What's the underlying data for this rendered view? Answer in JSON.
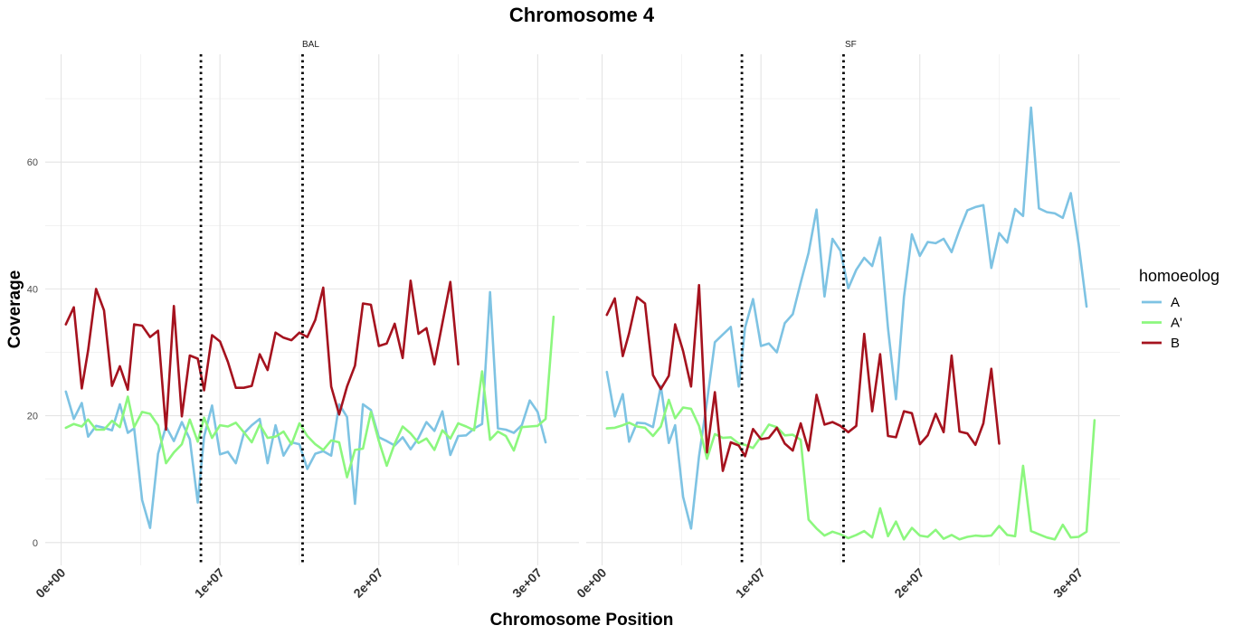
{
  "chart_data": {
    "type": "line",
    "title": "Chromosome 4",
    "xlabel": "Chromosome Position",
    "ylabel": "Coverage",
    "xlim": [
      -1000000,
      32600000
    ],
    "ylim": [
      -3600,
      77000
    ],
    "x_ticks": [
      0,
      10000000,
      20000000,
      30000000
    ],
    "x_tick_labels": [
      "0e+00",
      "1e+07",
      "2e+07",
      "3e+07"
    ],
    "y_ticks": [
      0,
      20,
      40,
      60
    ],
    "y_tick_labels": [
      "0",
      "20",
      "40",
      "60"
    ],
    "y_scale": 1000,
    "grid": true,
    "legend": {
      "title": "homoeolog",
      "position": "right"
    },
    "colors": {
      "A": "#7ec3e3",
      "A'": "#8cf77e",
      "B": "#a5121e"
    },
    "panels": [
      {
        "label": "BAL",
        "vlines": [
          8800000,
          15200000
        ],
        "series": [
          {
            "name": "A",
            "color": "#7ec3e3",
            "x": [
              300000,
              800000,
              1300000,
              1700000,
              2200000,
              2700000,
              3200000,
              3700000,
              4200000,
              4600000,
              5100000,
              5600000,
              6100000,
              6600000,
              7100000,
              7600000,
              8100000,
              8600000,
              9000000,
              9500000,
              10000000,
              10500000,
              11000000,
              11500000,
              12000000,
              12500000,
              13000000,
              13500000,
              14000000,
              14500000,
              15000000,
              15500000,
              16000000,
              16500000,
              17000000,
              17500000,
              18000000,
              18500000,
              19000000,
              19500000,
              20000000,
              20500000,
              21000000,
              21500000,
              22000000,
              22500000,
              23000000,
              23500000,
              24000000,
              24500000,
              25000000,
              25500000,
              26000000,
              26500000,
              27000000,
              27500000,
              28000000,
              28500000,
              29000000,
              29500000,
              30000000,
              30500000
            ],
            "y": [
              23.8,
              19.5,
              22.0,
              16.7,
              18.4,
              18.1,
              17.7,
              21.8,
              17.3,
              18.0,
              6.7,
              2.3,
              14.0,
              18.3,
              16.0,
              19.0,
              16.3,
              6.3,
              16.7,
              21.6,
              13.9,
              14.3,
              12.5,
              17.2,
              18.5,
              19.5,
              12.5,
              18.5,
              13.7,
              15.8,
              15.5,
              11.6,
              14.0,
              14.4,
              13.7,
              21.8,
              19.8,
              6.1,
              21.8,
              20.9,
              16.6,
              16.0,
              15.3,
              16.6,
              14.7,
              16.5,
              19.0,
              17.6,
              20.7,
              13.8,
              16.8,
              16.9,
              18.0,
              18.7,
              39.5,
              18.0,
              17.8,
              17.3,
              18.5,
              22.4,
              20.6,
              15.8
            ]
          },
          {
            "name": "A'",
            "color": "#8cf77e",
            "x": [
              300000,
              800000,
              1300000,
              1700000,
              2200000,
              2700000,
              3200000,
              3700000,
              4200000,
              4600000,
              5100000,
              5600000,
              6100000,
              6600000,
              7100000,
              7600000,
              8100000,
              8600000,
              9000000,
              9500000,
              10000000,
              10500000,
              11000000,
              11500000,
              12000000,
              12500000,
              13000000,
              13500000,
              14000000,
              14500000,
              15000000,
              15500000,
              16000000,
              16500000,
              17000000,
              17500000,
              18000000,
              18500000,
              19000000,
              19500000,
              20000000,
              20500000,
              21000000,
              21500000,
              22000000,
              22500000,
              23000000,
              23500000,
              24000000,
              24500000,
              25000000,
              25500000,
              26000000,
              26500000,
              27000000,
              27500000,
              28000000,
              28500000,
              29000000,
              29500000,
              30000000,
              30500000,
              31000000
            ],
            "y": [
              18.1,
              18.7,
              18.3,
              19.4,
              17.8,
              17.8,
              19.2,
              18.2,
              23.0,
              18.2,
              20.6,
              20.3,
              18.5,
              12.5,
              14.2,
              15.5,
              19.4,
              15.9,
              19.7,
              16.5,
              18.5,
              18.3,
              18.9,
              17.4,
              15.8,
              18.6,
              16.5,
              16.7,
              17.5,
              15.5,
              18.8,
              16.8,
              15.5,
              14.6,
              16.1,
              15.8,
              10.3,
              14.6,
              14.8,
              20.6,
              16.0,
              12.1,
              15.6,
              18.3,
              17.2,
              15.7,
              16.4,
              14.6,
              17.7,
              16.4,
              18.8,
              18.3,
              17.7,
              27.0,
              16.2,
              17.5,
              16.8,
              14.5,
              18.2,
              18.3,
              18.4,
              19.5,
              35.6
            ]
          },
          {
            "name": "B",
            "color": "#a5121e",
            "x": [
              300000,
              800000,
              1300000,
              1700000,
              2200000,
              2700000,
              3200000,
              3700000,
              4200000,
              4600000,
              5100000,
              5600000,
              6100000,
              6600000,
              7100000,
              7600000,
              8100000,
              8600000,
              9000000,
              9500000,
              10000000,
              10500000,
              11000000,
              11500000,
              12000000,
              12500000,
              13000000,
              13500000,
              14000000,
              14500000,
              15000000,
              15500000,
              16000000,
              16500000,
              17000000,
              17500000,
              18000000,
              18500000,
              19000000,
              19500000,
              20000000,
              20500000,
              21000000,
              21500000,
              22000000,
              22500000,
              23000000,
              23500000,
              24000000,
              24500000,
              25000000
            ],
            "y": [
              34.4,
              37.1,
              24.3,
              30.3,
              40.0,
              36.6,
              24.7,
              27.8,
              24.1,
              34.4,
              34.2,
              32.4,
              33.4,
              17.8,
              37.3,
              19.9,
              29.5,
              29.0,
              24.0,
              32.7,
              31.7,
              28.5,
              24.4,
              24.4,
              24.7,
              29.7,
              27.2,
              33.1,
              32.3,
              31.9,
              33.1,
              32.4,
              35.1,
              40.2,
              24.6,
              20.2,
              24.6,
              27.9,
              37.7,
              37.5,
              31.0,
              31.4,
              34.5,
              29.1,
              41.3,
              32.9,
              33.8,
              28.1,
              34.6,
              41.1,
              28.1
            ]
          }
        ]
      },
      {
        "label": "SF",
        "vlines": [
          8800000,
          15200000
        ],
        "series": [
          {
            "name": "A",
            "color": "#7ec3e3",
            "x": [
              300000,
              800000,
              1300000,
              1700000,
              2200000,
              2700000,
              3200000,
              3700000,
              4200000,
              4600000,
              5100000,
              5600000,
              6100000,
              6600000,
              7100000,
              7600000,
              8100000,
              8600000,
              9000000,
              9500000,
              10000000,
              10500000,
              11000000,
              11500000,
              12000000,
              12500000,
              13000000,
              13500000,
              14000000,
              14500000,
              15000000,
              15500000,
              16000000,
              16500000,
              17000000,
              17500000,
              18000000,
              18500000,
              19000000,
              19500000,
              20000000,
              20500000,
              21000000,
              21500000,
              22000000,
              22500000,
              23000000,
              23500000,
              24000000,
              24500000,
              25000000,
              25500000,
              26000000,
              26500000,
              27000000,
              27500000,
              28000000,
              28500000,
              29000000,
              29500000,
              30000000,
              30500000
            ],
            "y": [
              26.9,
              19.9,
              23.4,
              15.9,
              18.9,
              18.8,
              18.2,
              24.7,
              15.7,
              18.5,
              7.2,
              2.2,
              13.6,
              22.2,
              31.6,
              32.8,
              34.0,
              24.6,
              33.9,
              38.4,
              31.0,
              31.4,
              30.0,
              34.6,
              36.0,
              41.0,
              45.7,
              52.5,
              38.8,
              47.9,
              46.0,
              40.1,
              43.0,
              44.9,
              43.6,
              48.1,
              33.8,
              22.6,
              38.7,
              48.6,
              45.2,
              47.4,
              47.2,
              47.9,
              45.8,
              49.3,
              52.4,
              52.9,
              53.2,
              43.3,
              48.8,
              47.3,
              52.6,
              51.5,
              68.6,
              52.7,
              52.1,
              51.9,
              51.2,
              55.1,
              47.1,
              37.2
            ]
          },
          {
            "name": "A'",
            "color": "#8cf77e",
            "x": [
              300000,
              800000,
              1300000,
              1700000,
              2200000,
              2700000,
              3200000,
              3700000,
              4200000,
              4600000,
              5100000,
              5600000,
              6100000,
              6600000,
              7100000,
              7600000,
              8100000,
              8600000,
              9000000,
              9500000,
              10000000,
              10500000,
              11000000,
              11500000,
              12000000,
              12500000,
              13000000,
              13500000,
              14000000,
              14500000,
              15000000,
              15500000,
              16000000,
              16500000,
              17000000,
              17500000,
              18000000,
              18500000,
              19000000,
              19500000,
              20000000,
              20500000,
              21000000,
              21500000,
              22000000,
              22500000,
              23000000,
              23500000,
              24000000,
              24500000,
              25000000,
              25500000,
              26000000,
              26500000,
              27000000,
              27500000,
              28000000,
              28500000,
              29000000,
              29500000,
              30000000,
              30500000,
              31000000
            ],
            "y": [
              18.0,
              18.1,
              18.5,
              18.9,
              18.3,
              18.1,
              16.8,
              18.3,
              22.5,
              19.6,
              21.3,
              21.1,
              18.4,
              13.2,
              17.1,
              16.5,
              16.6,
              15.6,
              15.4,
              14.9,
              16.7,
              18.6,
              18.2,
              16.9,
              17.0,
              16.2,
              3.6,
              2.2,
              1.1,
              1.7,
              1.3,
              0.7,
              1.2,
              1.8,
              0.8,
              5.4,
              1.0,
              3.3,
              0.5,
              2.3,
              1.1,
              0.9,
              2.0,
              0.6,
              1.2,
              0.5,
              0.9,
              1.1,
              1.0,
              1.1,
              2.6,
              1.2,
              1.0,
              12.1,
              1.8,
              1.3,
              0.8,
              0.5,
              2.8,
              0.8,
              0.9,
              1.7,
              19.3
            ]
          },
          {
            "name": "B",
            "color": "#a5121e",
            "x": [
              300000,
              800000,
              1300000,
              1700000,
              2200000,
              2700000,
              3200000,
              3700000,
              4200000,
              4600000,
              5100000,
              5600000,
              6100000,
              6600000,
              7100000,
              7600000,
              8100000,
              8600000,
              9000000,
              9500000,
              10000000,
              10500000,
              11000000,
              11500000,
              12000000,
              12500000,
              13000000,
              13500000,
              14000000,
              14500000,
              15000000,
              15500000,
              16000000,
              16500000,
              17000000,
              17500000,
              18000000,
              18500000,
              19000000,
              19500000,
              20000000,
              20500000,
              21000000,
              21500000,
              22000000,
              22500000,
              23000000,
              23500000,
              24000000,
              24500000,
              25000000
            ],
            "y": [
              35.9,
              38.5,
              29.4,
              33.0,
              38.7,
              37.7,
              26.4,
              24.2,
              26.3,
              34.4,
              30.2,
              24.6,
              40.6,
              14.2,
              23.7,
              11.3,
              15.8,
              15.3,
              13.6,
              17.9,
              16.3,
              16.5,
              18.1,
              15.6,
              14.5,
              18.8,
              14.5,
              23.3,
              18.6,
              19.0,
              18.4,
              17.4,
              18.4,
              32.9,
              20.7,
              29.7,
              16.8,
              16.6,
              20.7,
              20.4,
              15.5,
              16.9,
              20.3,
              17.4,
              29.5,
              17.5,
              17.2,
              15.4,
              18.8,
              27.4,
              15.6
            ]
          }
        ]
      }
    ]
  }
}
